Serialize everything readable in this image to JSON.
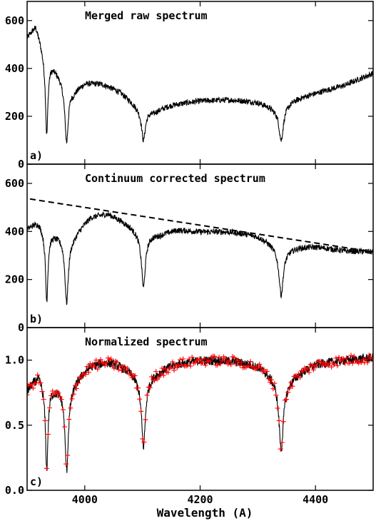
{
  "chart_data": {
    "type": "line",
    "xlabel": "Wavelength (A)",
    "xlim": [
      3900,
      4500
    ],
    "x_ticks": [
      4000,
      4200,
      4400
    ],
    "x_ticks_text": [
      "4000",
      "4200",
      "4400"
    ],
    "absorption_lines": [
      {
        "center": 3934,
        "width": 2.5
      },
      {
        "center": 3968.5,
        "width": 3.5
      },
      {
        "center": 4101.7,
        "width": 4.0
      },
      {
        "center": 4340.5,
        "width": 4.5
      }
    ],
    "panels": [
      {
        "id": "a",
        "letter": "a)",
        "title": "Merged raw spectrum",
        "ylim": [
          0,
          680
        ],
        "y_ticks": [
          0,
          200,
          400,
          600
        ],
        "y_ticks_text": [
          "0",
          "200",
          "400",
          "600"
        ],
        "series": [
          {
            "kind": "line",
            "color": "#000000",
            "x": [
              3900,
              3915,
              3930,
              3955,
              3980,
              4000,
              4030,
              4060,
              4090,
              4120,
              4150,
              4200,
              4250,
              4300,
              4330,
              4360,
              4400,
              4450,
              4500
            ],
            "y": [
              540,
              610,
              520,
              420,
              330,
              350,
              340,
              310,
              260,
              230,
              250,
              265,
              270,
              265,
              250,
              280,
              300,
              330,
              380
            ],
            "line_depth": [
              0.75,
              0.75,
              0.6,
              0.62
            ],
            "noise": 12
          }
        ]
      },
      {
        "id": "b",
        "letter": "b)",
        "title": "Continuum corrected spectrum",
        "ylim": [
          0,
          680
        ],
        "y_ticks": [
          0,
          200,
          400,
          600
        ],
        "y_ticks_text": [
          "0",
          "200",
          "400",
          "600"
        ],
        "series": [
          {
            "kind": "line",
            "color": "#000000",
            "x": [
              3900,
              3920,
              3950,
              3980,
              4010,
              4040,
              4070,
              4100,
              4130,
              4160,
              4200,
              4250,
              4300,
              4350,
              4400,
              4450,
              4500
            ],
            "y": [
              420,
              470,
              430,
              410,
              470,
              480,
              450,
              420,
              400,
              410,
              400,
              400,
              390,
              350,
              340,
              320,
              315
            ],
            "line_depth": [
              0.75,
              0.75,
              0.6,
              0.62
            ],
            "noise": 12
          },
          {
            "kind": "dashed",
            "color": "#000000",
            "x": [
              3905,
              4500
            ],
            "y": [
              535,
              315
            ]
          }
        ]
      },
      {
        "id": "c",
        "letter": "c)",
        "title": "Normalized spectrum",
        "ylim": [
          0.0,
          1.25
        ],
        "y_ticks": [
          0.0,
          0.5,
          1.0
        ],
        "y_ticks_text": [
          "0.0",
          "0.5",
          "1.0"
        ],
        "series": [
          {
            "kind": "line",
            "color": "#000000",
            "x": [
              3900,
              3920,
              3950,
              3980,
              4010,
              4040,
              4070,
              4100,
              4130,
              4160,
              4200,
              4250,
              4300,
              4350,
              4400,
              4450,
              4500
            ],
            "y": [
              0.78,
              0.95,
              0.88,
              0.9,
              0.98,
              1.0,
              0.97,
              0.93,
              0.95,
              0.98,
              1.0,
              1.0,
              0.98,
              0.9,
              0.98,
              1.0,
              1.02
            ],
            "line_depth": [
              0.83,
              0.83,
              0.64,
              0.66
            ],
            "noise": 0.035
          },
          {
            "kind": "markers",
            "color": "#ff0000",
            "marker": "+",
            "x": [
              3900,
              3920,
              3950,
              3980,
              4010,
              4040,
              4070,
              4100,
              4130,
              4160,
              4200,
              4250,
              4300,
              4350,
              4400,
              4450,
              4500
            ],
            "y": [
              0.78,
              0.95,
              0.88,
              0.9,
              0.98,
              1.0,
              0.97,
              0.93,
              0.95,
              0.98,
              1.0,
              1.0,
              0.98,
              0.9,
              0.98,
              1.0,
              1.02
            ],
            "line_depth": [
              0.83,
              0.83,
              0.64,
              0.66
            ],
            "noise": 0.035
          }
        ]
      }
    ]
  }
}
